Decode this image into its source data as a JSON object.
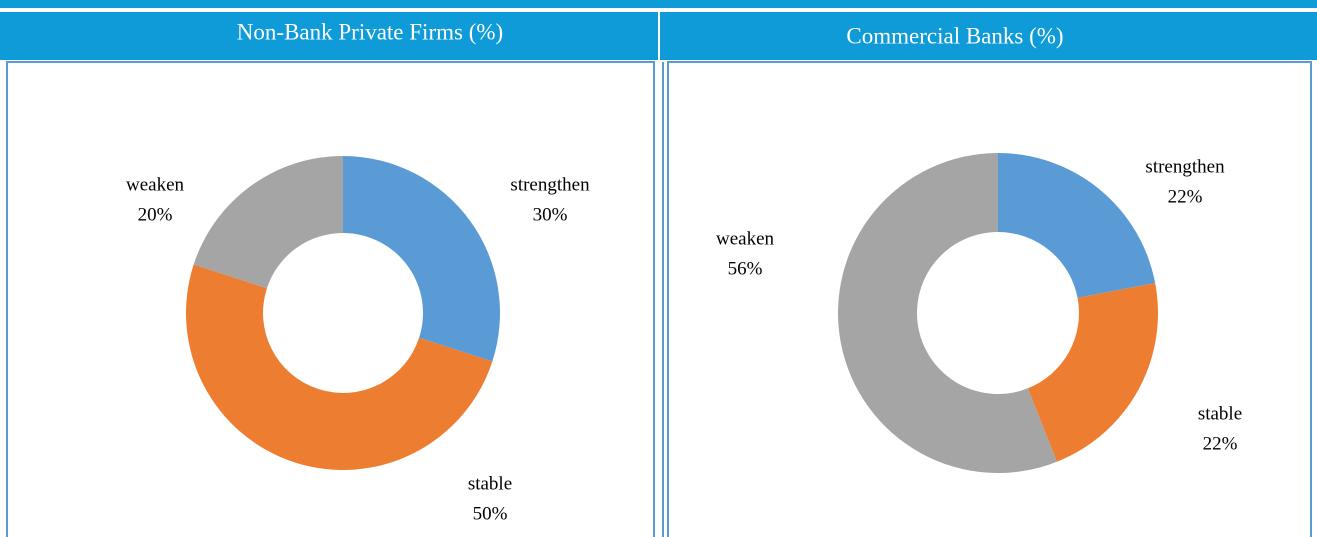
{
  "chart_data": [
    {
      "type": "donut",
      "title": "Non-Bank Private Firms (%)",
      "categories": [
        "strengthen",
        "stable",
        "weaken"
      ],
      "values": [
        30,
        50,
        20
      ],
      "value_labels": [
        "30%",
        "50%",
        "20%"
      ],
      "colors": [
        "#5b9bd5",
        "#ed7d31",
        "#a5a5a5"
      ]
    },
    {
      "type": "donut",
      "title": "Commercial Banks (%)",
      "categories": [
        "strengthen",
        "stable",
        "weaken"
      ],
      "values": [
        22,
        22,
        56
      ],
      "value_labels": [
        "22%",
        "22%",
        "56%"
      ],
      "colors": [
        "#5b9bd5",
        "#ed7d31",
        "#a5a5a5"
      ]
    }
  ]
}
